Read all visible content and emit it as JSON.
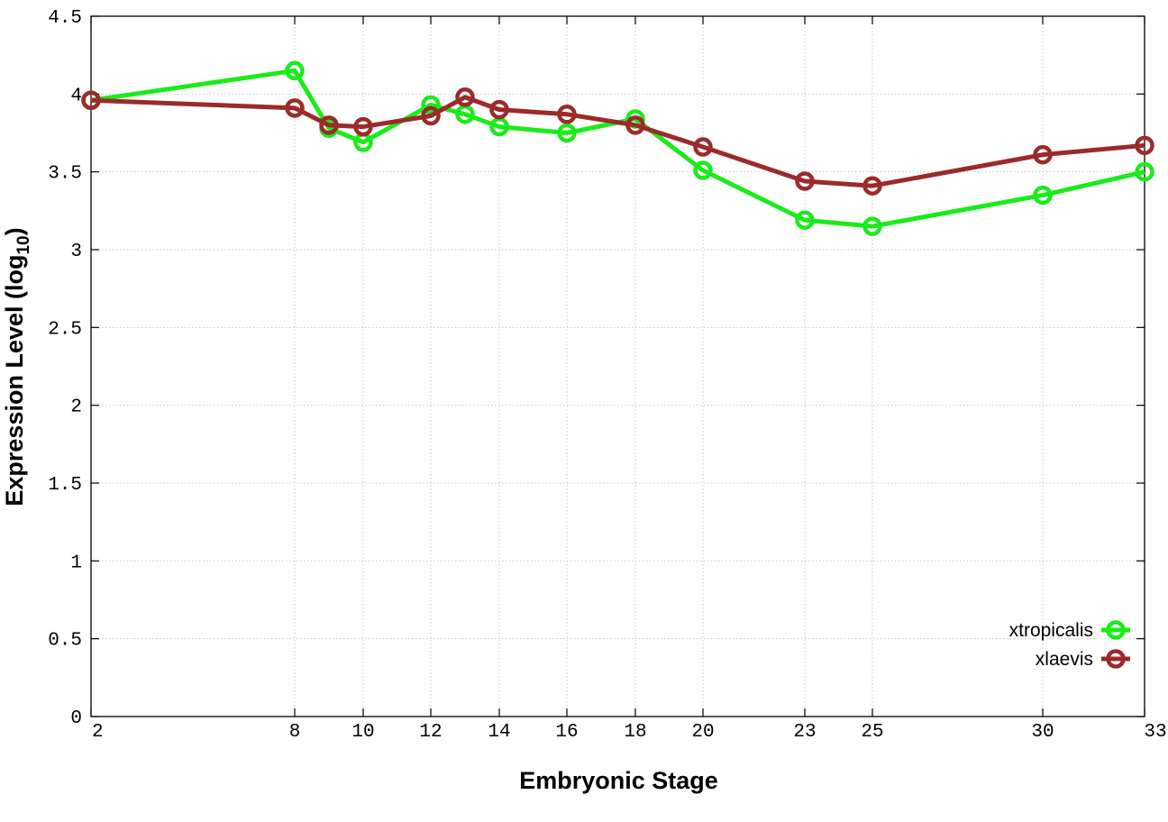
{
  "chart_data": {
    "type": "line",
    "xlabel": "Embryonic Stage",
    "ylabel_main": "Expression Level (log",
    "ylabel_sub": "10",
    "ylabel_end": ")",
    "ylim": [
      0,
      4.5
    ],
    "yticks": [
      "0",
      "0.5",
      "1",
      "1.5",
      "2",
      "2.5",
      "3",
      "3.5",
      "4",
      "4.5"
    ],
    "yticks_values": [
      0,
      0.5,
      1,
      1.5,
      2,
      2.5,
      3,
      3.5,
      4,
      4.5
    ],
    "xlim": [
      2,
      33
    ],
    "xticks": [
      "2",
      "8",
      "10",
      "12",
      "14",
      "16",
      "18",
      "20",
      "23",
      "25",
      "30",
      "33"
    ],
    "x_tick_stages": [
      2,
      8,
      10,
      12,
      14,
      16,
      18,
      20,
      23,
      25,
      30,
      33
    ],
    "grid": true,
    "legend_position": "bottom-right",
    "x": [
      2,
      8,
      9,
      10,
      12,
      13,
      14,
      16,
      18,
      20,
      23,
      25,
      30,
      33
    ],
    "series": [
      {
        "name": "xtropicalis",
        "color": "#1aeb1a",
        "values": [
          3.96,
          4.15,
          3.78,
          3.69,
          3.93,
          3.87,
          3.79,
          3.75,
          3.84,
          3.51,
          3.19,
          3.15,
          3.35,
          3.5
        ]
      },
      {
        "name": "xlaevis",
        "color": "#9b2a2a",
        "values": [
          3.96,
          3.91,
          3.8,
          3.79,
          3.86,
          3.98,
          3.9,
          3.87,
          3.8,
          3.66,
          3.44,
          3.41,
          3.61,
          3.67
        ]
      }
    ]
  }
}
